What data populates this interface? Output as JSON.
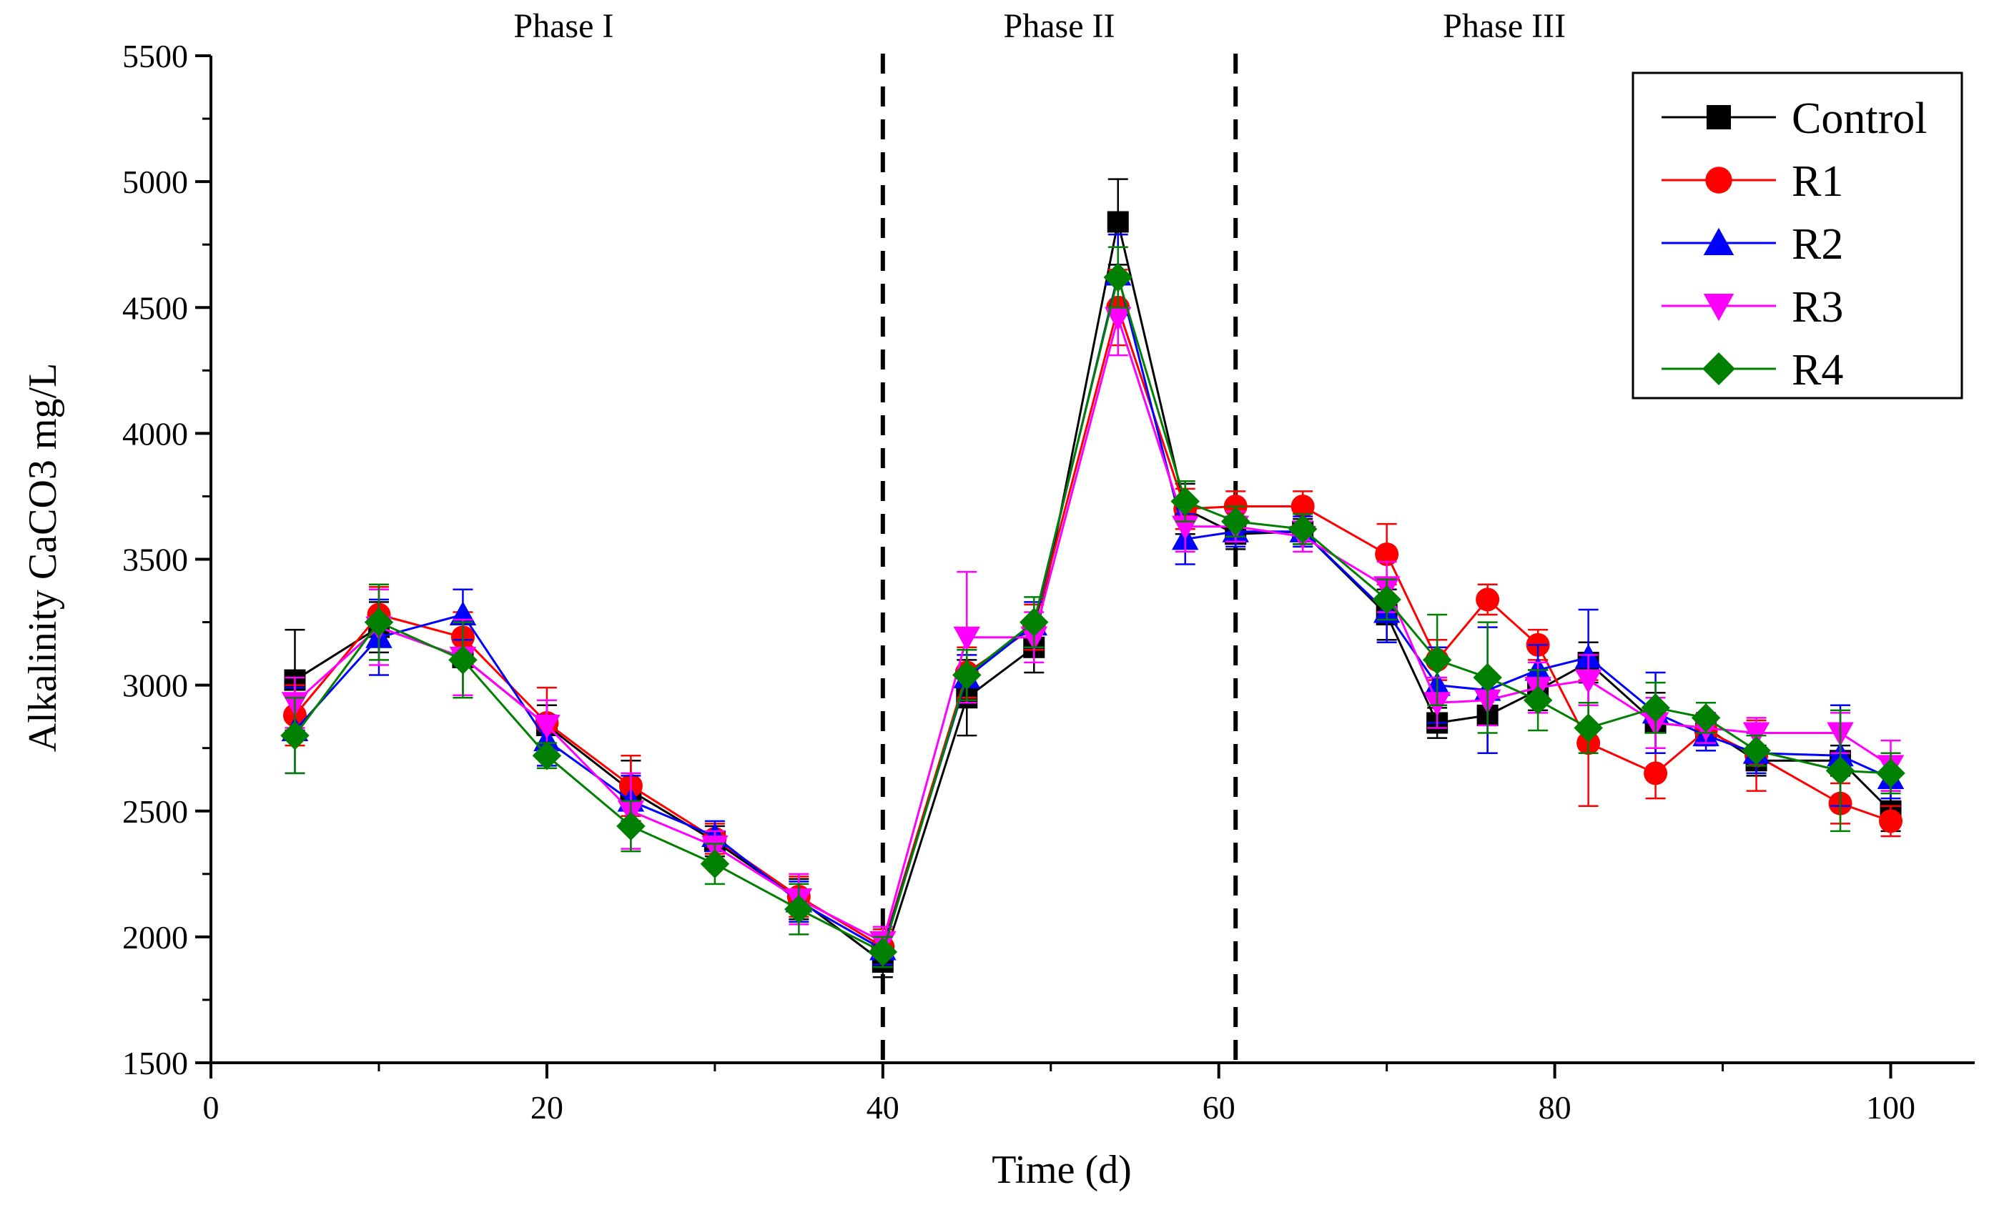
{
  "chart_data": {
    "type": "line",
    "title": "",
    "xlabel": "Time (d)",
    "ylabel": "Alkalinity CaCO3 mg/L",
    "xlim": [
      0,
      105
    ],
    "ylim": [
      1500,
      5500
    ],
    "x_ticks": [
      0,
      20,
      40,
      60,
      80,
      100
    ],
    "y_ticks": [
      1500,
      2000,
      2500,
      3000,
      3500,
      4000,
      4500,
      5000,
      5500
    ],
    "x_tick_labels": [
      "0",
      "20",
      "40",
      "60",
      "80",
      "100"
    ],
    "y_tick_labels": [
      "1500",
      "2000",
      "2500",
      "3000",
      "3500",
      "4000",
      "4500",
      "5000",
      "5500"
    ],
    "legend_position": "top-right",
    "phase_dividers": [
      40,
      61
    ],
    "phases": [
      {
        "label": "Phase I",
        "center": 21
      },
      {
        "label": "Phase II",
        "center": 50.5
      },
      {
        "label": "Phase III",
        "center": 77
      }
    ],
    "x": [
      5,
      10,
      15,
      20,
      25,
      30,
      35,
      40,
      45,
      49,
      54,
      58,
      61,
      65,
      70,
      73,
      76,
      79,
      82,
      86,
      89,
      92,
      97,
      100
    ],
    "series": [
      {
        "name": "Control",
        "color": "#000000",
        "marker": "square",
        "values": [
          3020,
          3230,
          3110,
          2840,
          2580,
          2380,
          2150,
          1900,
          2950,
          3150,
          4840,
          3700,
          3600,
          3610,
          3280,
          2850,
          2880,
          2980,
          3090,
          2850,
          2830,
          2700,
          2700,
          2500
        ],
        "errors": [
          200,
          100,
          150,
          80,
          120,
          60,
          80,
          60,
          150,
          100,
          170,
          100,
          60,
          50,
          100,
          60,
          150,
          80,
          80,
          120,
          60,
          60,
          60,
          80
        ]
      },
      {
        "name": "R1",
        "color": "#ff0000",
        "marker": "circle",
        "values": [
          2880,
          3280,
          3190,
          2850,
          2600,
          2390,
          2160,
          1960,
          3050,
          3230,
          4500,
          3700,
          3710,
          3710,
          3520,
          3100,
          3340,
          3160,
          2770,
          2650,
          2820,
          2720,
          2530,
          2460
        ],
        "errors": [
          120,
          110,
          100,
          140,
          120,
          60,
          80,
          70,
          100,
          90,
          150,
          80,
          60,
          60,
          120,
          80,
          60,
          60,
          250,
          100,
          60,
          140,
          80,
          60
        ]
      },
      {
        "name": "R2",
        "color": "#0000ff",
        "marker": "triangle-up",
        "values": [
          2820,
          3190,
          3280,
          2780,
          2540,
          2400,
          2140,
          1950,
          3030,
          3240,
          4630,
          3580,
          3610,
          3610,
          3290,
          3000,
          2980,
          3060,
          3110,
          2890,
          2800,
          2730,
          2720,
          2630
        ],
        "errors": [
          170,
          150,
          100,
          100,
          100,
          60,
          80,
          60,
          90,
          90,
          160,
          100,
          60,
          60,
          120,
          150,
          250,
          100,
          190,
          160,
          60,
          80,
          200,
          80
        ]
      },
      {
        "name": "R3",
        "color": "#ff00ff",
        "marker": "triangle-down",
        "values": [
          2930,
          3230,
          3110,
          2840,
          2500,
          2360,
          2150,
          1980,
          3190,
          3190,
          4460,
          3630,
          3630,
          3590,
          3390,
          2930,
          2940,
          2990,
          3020,
          2850,
          2830,
          2810,
          2810,
          2680
        ],
        "errors": [
          100,
          150,
          150,
          100,
          150,
          60,
          100,
          60,
          260,
          100,
          150,
          100,
          60,
          60,
          100,
          100,
          100,
          100,
          100,
          100,
          60,
          60,
          80,
          100
        ]
      },
      {
        "name": "R4",
        "color": "#008000",
        "marker": "diamond",
        "values": [
          2800,
          3250,
          3100,
          2720,
          2440,
          2290,
          2110,
          1940,
          3040,
          3250,
          4620,
          3730,
          3650,
          3620,
          3340,
          3100,
          3030,
          2940,
          2830,
          2910,
          2870,
          2740,
          2660,
          2650
        ],
        "errors": [
          150,
          150,
          150,
          50,
          100,
          80,
          100,
          60,
          100,
          100,
          120,
          80,
          60,
          60,
          80,
          180,
          220,
          120,
          100,
          100,
          60,
          60,
          240,
          80
        ]
      }
    ]
  }
}
